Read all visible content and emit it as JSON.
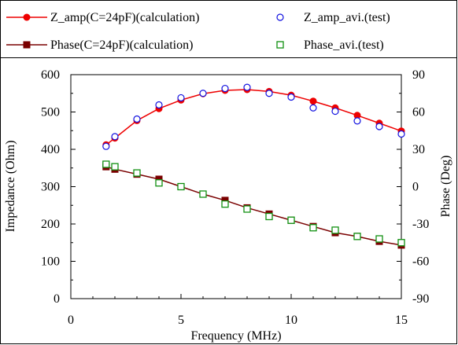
{
  "chart_data": {
    "type": "line",
    "title": "",
    "xlabel": "Frequency (MHz)",
    "ylabel": "Impedance (Ohm)",
    "y2label": "Phase (Deg)",
    "xlim": [
      0,
      15
    ],
    "ylim": [
      0,
      600
    ],
    "y2lim": [
      -90,
      90
    ],
    "xticks": [
      0,
      5,
      10,
      15
    ],
    "yticks": [
      0,
      100,
      200,
      300,
      400,
      500,
      600
    ],
    "y2ticks": [
      -90,
      -60,
      -30,
      0,
      30,
      60,
      90
    ],
    "grid": false,
    "legend_position": "top",
    "colors": {
      "red": "#ee0000",
      "blue": "#1010e0",
      "darkred": "#7a0000",
      "green": "#109010"
    },
    "series": [
      {
        "name": "Z_amp(C=24pF)(calculation)",
        "axis": "left",
        "style": "line-marker",
        "marker": "circle-filled",
        "color": "#ee0000",
        "x": [
          1.6,
          2,
          3,
          4,
          5,
          6,
          7,
          8,
          9,
          10,
          11,
          12,
          13,
          14,
          15
        ],
        "y": [
          412,
          430,
          477,
          509,
          532,
          549,
          558,
          560,
          555,
          545,
          529,
          511,
          491,
          470,
          449
        ]
      },
      {
        "name": "Z_amp_avi.(test)",
        "axis": "left",
        "style": "marker",
        "marker": "circle-open",
        "color": "#1010e0",
        "x": [
          1.6,
          2,
          3,
          4,
          5,
          6,
          7,
          8,
          9,
          10,
          11,
          12,
          13,
          14,
          15
        ],
        "y": [
          408,
          434,
          481,
          519,
          538,
          550,
          563,
          566,
          550,
          540,
          511,
          502,
          476,
          461,
          441
        ]
      },
      {
        "name": "Phase(C=24pF)(calculation)",
        "axis": "right",
        "style": "line-marker",
        "marker": "square-filled",
        "color": "#7a0000",
        "x": [
          1.6,
          2,
          3,
          4,
          5,
          6,
          7,
          8,
          9,
          10,
          11,
          12,
          13,
          14,
          15
        ],
        "y": [
          16,
          14,
          10,
          6,
          0,
          -6,
          -11,
          -17,
          -22,
          -27,
          -32,
          -37,
          -40,
          -44,
          -47
        ]
      },
      {
        "name": "Phase_avi.(test)",
        "axis": "right",
        "style": "marker",
        "marker": "square-open",
        "color": "#109010",
        "x": [
          1.6,
          2,
          3,
          4,
          5,
          6,
          7,
          8,
          9,
          10,
          11,
          12,
          13,
          14,
          15
        ],
        "y": [
          18,
          16,
          11,
          3,
          0,
          -6,
          -14,
          -18,
          -24,
          -27,
          -33,
          -35,
          -40,
          -42,
          -45
        ]
      }
    ]
  }
}
